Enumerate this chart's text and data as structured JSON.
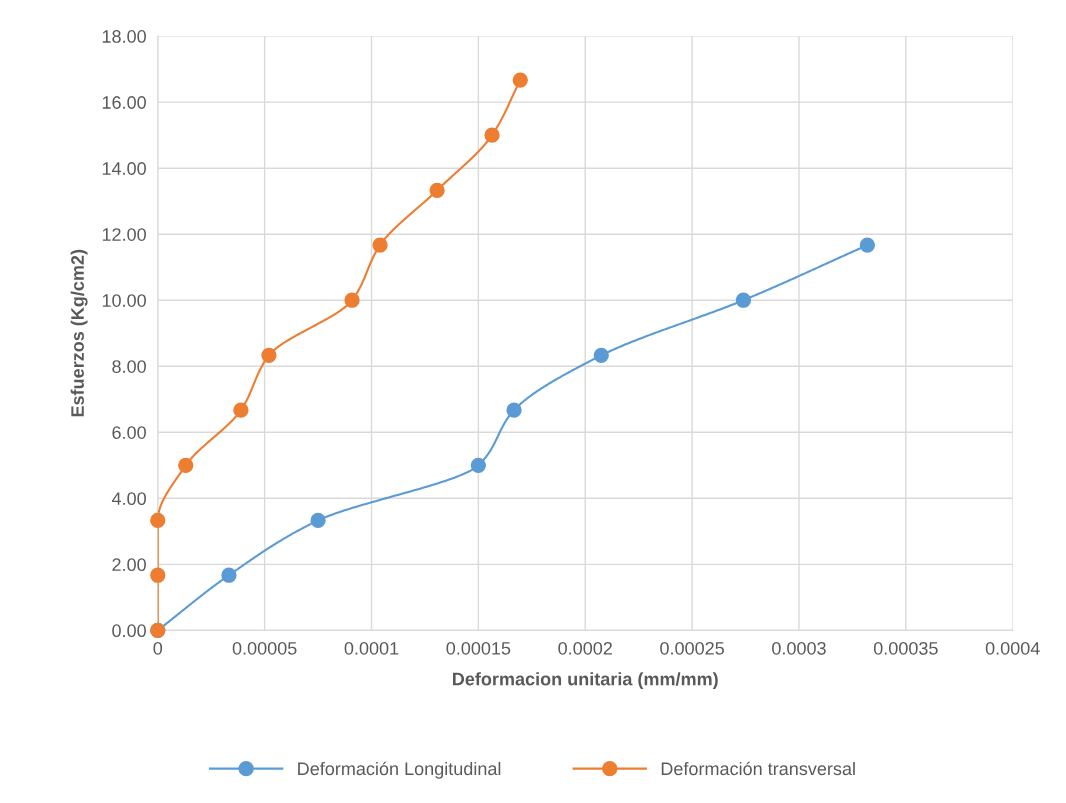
{
  "chart_data": {
    "type": "line",
    "xlabel": "Deformacion unitaria (mm/mm)",
    "ylabel": "Esfuerzos (Kg/cm2)",
    "series": [
      {
        "name": "Deformación Longitudinal",
        "color": "#5b9bd5",
        "x": [
          0,
          3.33e-05,
          7.5e-05,
          0.00015,
          0.0001667,
          0.0002075,
          0.000274,
          0.000332
        ],
        "values": [
          0,
          1.67,
          3.33,
          5.0,
          6.67,
          8.33,
          10.0,
          11.67
        ]
      },
      {
        "name": "Deformación transversal",
        "color": "#ed7d31",
        "x": [
          0,
          0,
          0,
          1.31e-05,
          3.89e-05,
          5.2e-05,
          9.09e-05,
          0.000104,
          0.0001307,
          0.0001564,
          0.0001696
        ],
        "values": [
          0,
          1.67,
          3.33,
          5.0,
          6.67,
          8.33,
          10.0,
          11.67,
          13.33,
          15.0,
          16.67
        ]
      }
    ],
    "xlim": [
      0,
      0.0004
    ],
    "ylim": [
      0,
      18
    ],
    "xticks": [
      0,
      {
        "value": 5e-05,
        "label": "0.00005"
      },
      0.0001,
      0.00015,
      0.0002,
      0.00025,
      0.0003,
      0.00035,
      0.0004
    ],
    "yticks": [
      {
        "value": 0,
        "label": "0.00"
      },
      {
        "value": 2,
        "label": "2.00"
      },
      {
        "value": 4,
        "label": "4.00"
      },
      {
        "value": 6,
        "label": "6.00"
      },
      {
        "value": 8,
        "label": "8.00"
      },
      {
        "value": 10,
        "label": "10.00"
      },
      {
        "value": 12,
        "label": "12.00"
      },
      {
        "value": 14,
        "label": "14.00"
      },
      {
        "value": 16,
        "label": "16.00"
      },
      {
        "value": 18,
        "label": "18.00"
      }
    ],
    "grid": true,
    "legend": "bottom",
    "marker": "circle",
    "line_style": "solid"
  }
}
